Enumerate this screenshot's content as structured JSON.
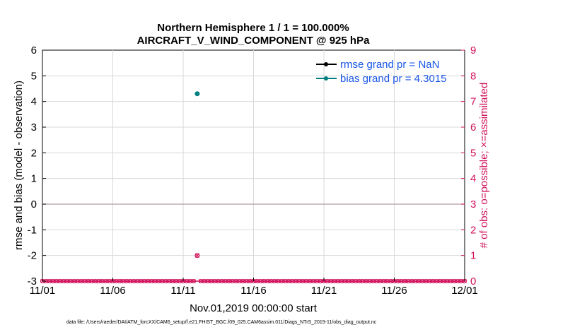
{
  "chart_data": {
    "type": "scatter",
    "title": "Northern Hemisphere 1 / 1 = 100.000%",
    "subtitle": "AIRCRAFT_V_WIND_COMPONENT @ 925 hPa",
    "xlabel": "Nov.01,2019 00:00:00 start",
    "ylabel": "rmse and bias (model - observation)",
    "ylabel_right": "# of obs: o=possible; ×=assimilated",
    "x_ticks": [
      "11/01",
      "11/06",
      "11/11",
      "11/16",
      "11/21",
      "11/26",
      "12/01"
    ],
    "x_range": [
      "11/01",
      "12/01"
    ],
    "ylim": [
      -3,
      6
    ],
    "y_ticks": [
      "-3",
      "-2",
      "-1",
      "0",
      "1",
      "2",
      "3",
      "4",
      "5",
      "6"
    ],
    "ylim_right": [
      0,
      9
    ],
    "y_ticks_right": [
      "0",
      "1",
      "2",
      "3",
      "4",
      "5",
      "6",
      "7",
      "8",
      "9"
    ],
    "grid": true,
    "legend_position": "top-right",
    "zero_line": 0,
    "series": [
      {
        "name": "rmse grand pr = NaN",
        "color": "#000000",
        "axis": "left",
        "x": [],
        "y": []
      },
      {
        "name": "bias grand pr = 4.3015",
        "color": "#008080",
        "axis": "left",
        "x": [
          "11/12"
        ],
        "y": [
          4.3015
        ]
      },
      {
        "name": "",
        "color": "#d0105a",
        "axis": "right",
        "marker": "o",
        "x": [
          "11/12"
        ],
        "y": [
          1
        ],
        "note_all_other_days": 0
      },
      {
        "name": "",
        "color": "#d0105a",
        "axis": "right",
        "marker": "x",
        "x": [
          "11/12"
        ],
        "y": [
          1
        ]
      }
    ],
    "obs_count_baseline": 0,
    "obs_days": 30,
    "obs_gap_day": "11/12"
  },
  "footer": "data file: /Users/raeder/DAI/ATM_forcXX/CAM6_setup/f.e21.FHIST_BGC.f09_025.CAM6assim.011/Diags_NTrS_2019-11/obs_diag_output.nc",
  "colors": {
    "left_axis": "#000000",
    "right_axis": "#d0105a",
    "legend_text": "#1a56e8",
    "grid": "#d8d8d8",
    "zero_line": "#b09aa3"
  }
}
